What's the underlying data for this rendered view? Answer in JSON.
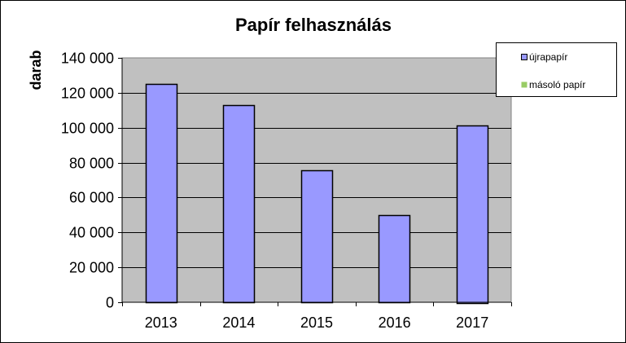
{
  "chart_data": {
    "type": "bar",
    "title": "Papír felhasználás",
    "xlabel": "",
    "ylabel": "darab",
    "categories": [
      "2013",
      "2014",
      "2015",
      "2016",
      "2017"
    ],
    "series": [
      {
        "name": "újrapapír",
        "color": "#9999ff",
        "values": [
          125000,
          113000,
          75500,
          50000,
          101500
        ]
      },
      {
        "name": "másoló papír",
        "color": "#99cc66",
        "values": [
          0,
          0,
          0,
          0,
          0
        ]
      }
    ],
    "ylim": [
      0,
      140000
    ],
    "yticks": [
      0,
      20000,
      40000,
      60000,
      80000,
      100000,
      120000,
      140000
    ],
    "ytick_labels": [
      "0",
      "20 000",
      "40 000",
      "60 000",
      "80 000",
      "100 000",
      "120 000",
      "140 000"
    ],
    "grid": true,
    "plot_background": "#c0c0c0",
    "legend_position": "top-right"
  }
}
